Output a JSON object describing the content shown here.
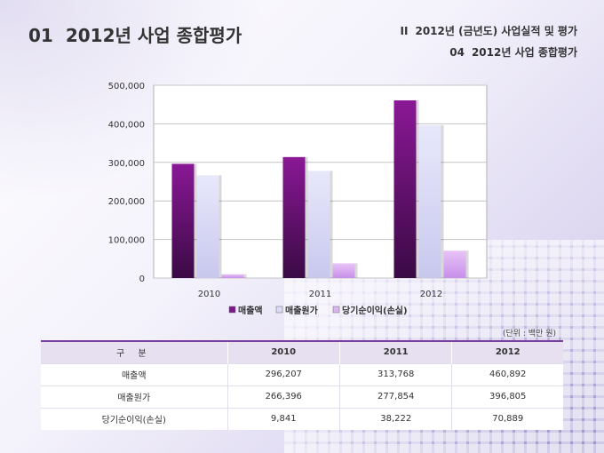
{
  "header": {
    "title_number": "01",
    "title": "2012년 사업 종합평가",
    "section_number": "II",
    "section_title": "2012년 (금년도) 사업실적 및 평가",
    "subsection_number": "04",
    "subsection_title": "2012년 사업 종합평가"
  },
  "chart_data": {
    "type": "bar",
    "categories": [
      "2010",
      "2011",
      "2012"
    ],
    "series": [
      {
        "name": "매출액",
        "values": [
          296207,
          313768,
          460892
        ],
        "color": "#7a1a8a"
      },
      {
        "name": "매출원가",
        "values": [
          266396,
          277854,
          396805
        ],
        "color": "#dcdcf6"
      },
      {
        "name": "당기순이익(손실)",
        "values": [
          9841,
          38222,
          70889
        ],
        "color": "#dcb4f2"
      }
    ],
    "y_ticks": [
      "500,000",
      "400,000",
      "300,000",
      "200,000",
      "100,000",
      "0"
    ],
    "ylim": [
      0,
      500000
    ],
    "grid": true,
    "legend_position": "bottom"
  },
  "table": {
    "unit_note": "(단위 : 백만 원)",
    "headers": [
      "구 분",
      "2010",
      "2011",
      "2012"
    ],
    "rows": [
      [
        "매출액",
        "296,207",
        "313,768",
        "460,892"
      ],
      [
        "매출원가",
        "266,396",
        "277,854",
        "396,805"
      ],
      [
        "당기순이익(손실)",
        "9,841",
        "38,222",
        "70,889"
      ]
    ]
  }
}
